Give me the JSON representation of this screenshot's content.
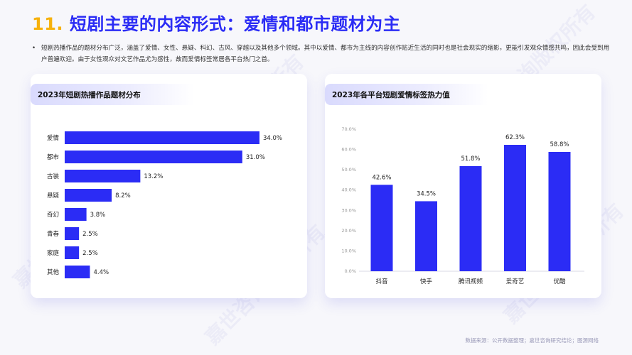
{
  "header": {
    "number": "11.",
    "title": "短剧主要的内容形式：爱情和都市题材为主"
  },
  "intro": {
    "bullet": "•",
    "text": "短剧热播作品的题材分布广泛，涵盖了爱情、女性、悬疑、科幻、古风、穿越以及其他多个领域。其中以爱情、都市为主线的内容创作贴近生活的同时也是社会现实的缩影，更能引发观众情感共鸣，因此会受到用户普遍欢迎。由于女性观众对文艺作品尤为感性，故而爱情标签常居各平台热门之首。"
  },
  "left_card": {
    "title": "2023年短剧热播作品题材分布"
  },
  "right_card": {
    "title": "2023年各平台短剧爱情标签热力值"
  },
  "source": "数据来源：公开数据整理；嘉世咨询研究结论；图源网络",
  "watermark": "嘉世咨询版权所有",
  "colors": {
    "bar": "#2b2cf5",
    "accent": "#f6b10c",
    "title": "#2b2cf5"
  },
  "chart_data": [
    {
      "type": "bar",
      "orientation": "horizontal",
      "title": "2023年短剧热播作品题材分布",
      "categories": [
        "爱情",
        "都市",
        "古装",
        "悬疑",
        "奇幻",
        "青春",
        "家庭",
        "其他"
      ],
      "values": [
        34.0,
        31.0,
        13.2,
        8.2,
        3.8,
        2.5,
        2.5,
        4.4
      ],
      "labels": [
        "34.0%",
        "31.0%",
        "13.2%",
        "8.2%",
        "3.8%",
        "2.5%",
        "2.5%",
        "4.4%"
      ],
      "xlim": [
        0,
        34.0
      ],
      "unit": "%"
    },
    {
      "type": "bar",
      "orientation": "vertical",
      "title": "2023年各平台短剧爱情标签热力值",
      "categories": [
        "抖音",
        "快手",
        "腾讯视频",
        "爱奇艺",
        "优酷"
      ],
      "values": [
        42.6,
        34.5,
        51.8,
        62.3,
        58.8
      ],
      "labels": [
        "42.6%",
        "34.5%",
        "51.8%",
        "62.3%",
        "58.8%"
      ],
      "ylim": [
        0,
        70
      ],
      "yticks": [
        "0.0%",
        "10.0%",
        "20.0%",
        "30.0%",
        "40.0%",
        "50.0%",
        "60.0%",
        "70.0%"
      ],
      "grid": false
    }
  ]
}
